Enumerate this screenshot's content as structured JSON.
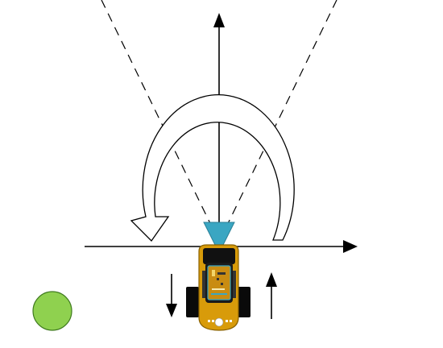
{
  "diagram": {
    "colors": {
      "background": "#ffffff",
      "line": "#000000",
      "dashed_ray": "#000000",
      "rotation_arrow_fill": "#ffffff",
      "rotation_arrow_stroke": "#000000",
      "heading_triangle": "#3aa6c2",
      "robot_body": "#d89b0a",
      "robot_body_stroke": "#8a6200",
      "robot_top_panel": "#111111",
      "robot_board": "#c98c12",
      "robot_board_outline": "#3aa6c2",
      "robot_wheel": "#0a0a0a",
      "marker_circle": "#8fd14f",
      "marker_stroke": "#3f7a1f"
    },
    "icons": {
      "robot": "robot-top-view-icon",
      "marker": "green-target-circle-icon",
      "rotation": "counterclockwise-rotation-arrow-icon",
      "heading": "heading-triangle-icon"
    }
  }
}
